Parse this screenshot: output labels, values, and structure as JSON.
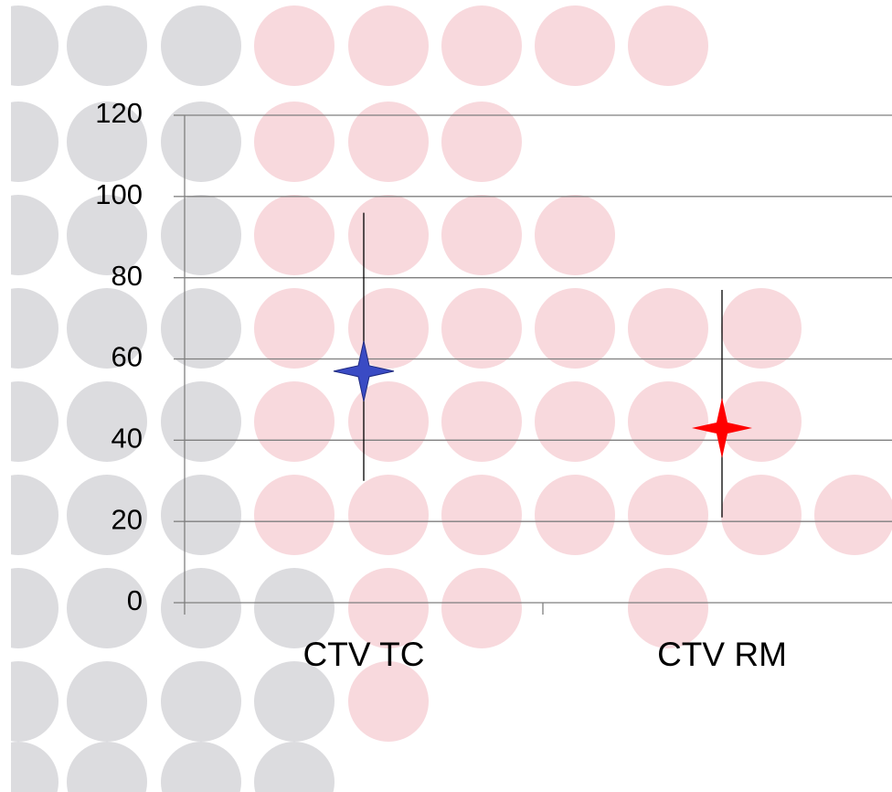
{
  "chart_data": {
    "type": "errorbar",
    "categories": [
      "CTV TC",
      "CTV RM"
    ],
    "values": [
      57,
      43
    ],
    "error_minus": [
      27,
      22
    ],
    "error_plus": [
      39,
      34
    ],
    "colors": [
      "#3a4bc4",
      "#ff0000"
    ],
    "ylim": [
      0,
      120
    ],
    "yticks": [
      0,
      20,
      40,
      60,
      80,
      100,
      120
    ],
    "grid": true
  }
}
